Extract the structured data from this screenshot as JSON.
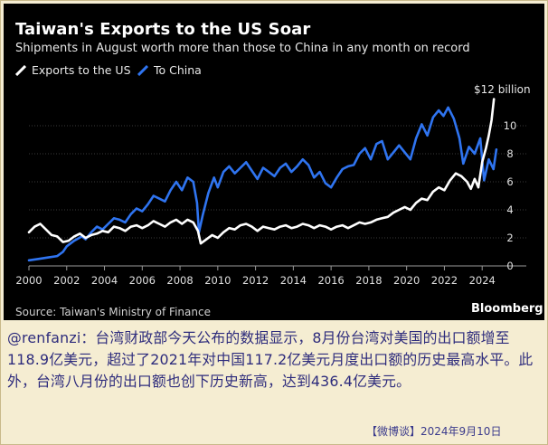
{
  "chart_data": {
    "type": "line",
    "title": "Taiwan's Exports to the US Soar",
    "subtitle": "Shipments in August worth more than those to China in any month on record",
    "unit_label": "$12 billion",
    "xlim": [
      2000,
      2024.9
    ],
    "ylim": [
      0,
      12
    ],
    "x_ticks": [
      "2000",
      "2002",
      "2004",
      "2006",
      "2008",
      "2010",
      "2012",
      "2014",
      "2016",
      "2018",
      "2020",
      "2022",
      "2024"
    ],
    "y_ticks": [
      "0",
      "2",
      "4",
      "6",
      "8",
      "10"
    ],
    "series": [
      {
        "name": "Exports to the US",
        "color": "#ffffff",
        "points": [
          [
            2000,
            2.4
          ],
          [
            2000.3,
            2.8
          ],
          [
            2000.6,
            3.0
          ],
          [
            2000.9,
            2.6
          ],
          [
            2001.2,
            2.2
          ],
          [
            2001.5,
            2.1
          ],
          [
            2001.8,
            1.7
          ],
          [
            2002.1,
            1.8
          ],
          [
            2002.4,
            2.1
          ],
          [
            2002.7,
            2.3
          ],
          [
            2003,
            2.0
          ],
          [
            2003.3,
            2.2
          ],
          [
            2003.6,
            2.3
          ],
          [
            2003.9,
            2.5
          ],
          [
            2004.2,
            2.4
          ],
          [
            2004.5,
            2.8
          ],
          [
            2004.8,
            2.7
          ],
          [
            2005.1,
            2.5
          ],
          [
            2005.4,
            2.8
          ],
          [
            2005.7,
            2.9
          ],
          [
            2006,
            2.7
          ],
          [
            2006.3,
            2.9
          ],
          [
            2006.6,
            3.2
          ],
          [
            2006.9,
            3.0
          ],
          [
            2007.2,
            2.8
          ],
          [
            2007.5,
            3.1
          ],
          [
            2007.8,
            3.3
          ],
          [
            2008.1,
            3.0
          ],
          [
            2008.4,
            3.3
          ],
          [
            2008.7,
            3.1
          ],
          [
            2008.95,
            2.5
          ],
          [
            2009.1,
            1.6
          ],
          [
            2009.4,
            1.9
          ],
          [
            2009.7,
            2.2
          ],
          [
            2010,
            2.0
          ],
          [
            2010.3,
            2.4
          ],
          [
            2010.6,
            2.7
          ],
          [
            2010.9,
            2.6
          ],
          [
            2011.2,
            2.9
          ],
          [
            2011.5,
            3.0
          ],
          [
            2011.8,
            2.8
          ],
          [
            2012.1,
            2.5
          ],
          [
            2012.4,
            2.8
          ],
          [
            2012.7,
            2.7
          ],
          [
            2013,
            2.6
          ],
          [
            2013.3,
            2.8
          ],
          [
            2013.6,
            2.9
          ],
          [
            2013.9,
            2.7
          ],
          [
            2014.2,
            2.8
          ],
          [
            2014.5,
            3.0
          ],
          [
            2014.8,
            2.9
          ],
          [
            2015.1,
            2.7
          ],
          [
            2015.4,
            2.9
          ],
          [
            2015.7,
            2.8
          ],
          [
            2016,
            2.6
          ],
          [
            2016.3,
            2.8
          ],
          [
            2016.6,
            2.9
          ],
          [
            2016.9,
            2.7
          ],
          [
            2017.2,
            2.9
          ],
          [
            2017.5,
            3.1
          ],
          [
            2017.8,
            3.0
          ],
          [
            2018.1,
            3.1
          ],
          [
            2018.4,
            3.3
          ],
          [
            2018.7,
            3.4
          ],
          [
            2019,
            3.5
          ],
          [
            2019.3,
            3.8
          ],
          [
            2019.6,
            4.0
          ],
          [
            2019.9,
            4.2
          ],
          [
            2020.2,
            4.0
          ],
          [
            2020.5,
            4.5
          ],
          [
            2020.8,
            4.8
          ],
          [
            2021.1,
            4.7
          ],
          [
            2021.4,
            5.3
          ],
          [
            2021.7,
            5.6
          ],
          [
            2022,
            5.4
          ],
          [
            2022.3,
            6.1
          ],
          [
            2022.6,
            6.6
          ],
          [
            2022.9,
            6.4
          ],
          [
            2023.2,
            6.0
          ],
          [
            2023.4,
            5.5
          ],
          [
            2023.6,
            6.2
          ],
          [
            2023.8,
            5.6
          ],
          [
            2024,
            7.4
          ],
          [
            2024.2,
            8.4
          ],
          [
            2024.35,
            9.3
          ],
          [
            2024.5,
            10.4
          ],
          [
            2024.62,
            11.9
          ]
        ]
      },
      {
        "name": "To China",
        "color": "#2f74f0",
        "points": [
          [
            2000,
            0.4
          ],
          [
            2000.5,
            0.5
          ],
          [
            2001,
            0.6
          ],
          [
            2001.5,
            0.7
          ],
          [
            2001.8,
            1.0
          ],
          [
            2002,
            1.4
          ],
          [
            2002.4,
            1.8
          ],
          [
            2002.8,
            2.1
          ],
          [
            2003,
            1.9
          ],
          [
            2003.3,
            2.4
          ],
          [
            2003.6,
            2.8
          ],
          [
            2003.9,
            2.6
          ],
          [
            2004.2,
            3.0
          ],
          [
            2004.5,
            3.4
          ],
          [
            2004.8,
            3.3
          ],
          [
            2005.1,
            3.1
          ],
          [
            2005.4,
            3.7
          ],
          [
            2005.7,
            4.1
          ],
          [
            2006,
            3.9
          ],
          [
            2006.3,
            4.4
          ],
          [
            2006.6,
            5.0
          ],
          [
            2006.9,
            4.8
          ],
          [
            2007.2,
            4.6
          ],
          [
            2007.5,
            5.4
          ],
          [
            2007.8,
            6.0
          ],
          [
            2008.1,
            5.4
          ],
          [
            2008.4,
            6.3
          ],
          [
            2008.7,
            6.0
          ],
          [
            2008.9,
            4.5
          ],
          [
            2009.0,
            2.4
          ],
          [
            2009.2,
            3.6
          ],
          [
            2009.5,
            5.2
          ],
          [
            2009.8,
            6.3
          ],
          [
            2010,
            5.6
          ],
          [
            2010.3,
            6.7
          ],
          [
            2010.6,
            7.1
          ],
          [
            2010.9,
            6.6
          ],
          [
            2011.2,
            7.0
          ],
          [
            2011.5,
            7.4
          ],
          [
            2011.8,
            6.8
          ],
          [
            2012.1,
            6.2
          ],
          [
            2012.4,
            7.0
          ],
          [
            2012.7,
            6.7
          ],
          [
            2013,
            6.4
          ],
          [
            2013.3,
            7.0
          ],
          [
            2013.6,
            7.3
          ],
          [
            2013.9,
            6.7
          ],
          [
            2014.2,
            7.1
          ],
          [
            2014.5,
            7.6
          ],
          [
            2014.8,
            7.2
          ],
          [
            2015.1,
            6.3
          ],
          [
            2015.4,
            6.7
          ],
          [
            2015.7,
            5.9
          ],
          [
            2016,
            5.6
          ],
          [
            2016.3,
            6.3
          ],
          [
            2016.6,
            6.9
          ],
          [
            2016.9,
            7.1
          ],
          [
            2017.2,
            7.2
          ],
          [
            2017.5,
            8.0
          ],
          [
            2017.8,
            8.4
          ],
          [
            2018.1,
            7.6
          ],
          [
            2018.4,
            8.7
          ],
          [
            2018.7,
            8.9
          ],
          [
            2019,
            7.6
          ],
          [
            2019.3,
            8.1
          ],
          [
            2019.6,
            8.6
          ],
          [
            2019.9,
            8.1
          ],
          [
            2020.2,
            7.6
          ],
          [
            2020.5,
            9.1
          ],
          [
            2020.8,
            10.1
          ],
          [
            2021.1,
            9.3
          ],
          [
            2021.4,
            10.6
          ],
          [
            2021.7,
            11.1
          ],
          [
            2021.95,
            10.7
          ],
          [
            2022.2,
            11.3
          ],
          [
            2022.5,
            10.5
          ],
          [
            2022.8,
            9.1
          ],
          [
            2023.0,
            7.3
          ],
          [
            2023.3,
            8.5
          ],
          [
            2023.6,
            8.0
          ],
          [
            2023.9,
            9.1
          ],
          [
            2024.1,
            6.1
          ],
          [
            2024.35,
            7.6
          ],
          [
            2024.6,
            6.9
          ],
          [
            2024.75,
            8.3
          ]
        ]
      }
    ],
    "grid": true,
    "legend_position": "top-left"
  },
  "source": "Source: Taiwan's Ministry of Finance",
  "brand": "Bloomberg",
  "caption": "@renfanzi：台湾财政部今天公布的数据显示，8月份台湾对美国的出口额增至118.9亿美元，超过了2021年对中国117.2亿美元月度出口额的历史最高水平。此外，台湾八月份的出口额也创下历史新高，达到436.4亿美元。",
  "footer": "【微博谈】2024年9月10日"
}
